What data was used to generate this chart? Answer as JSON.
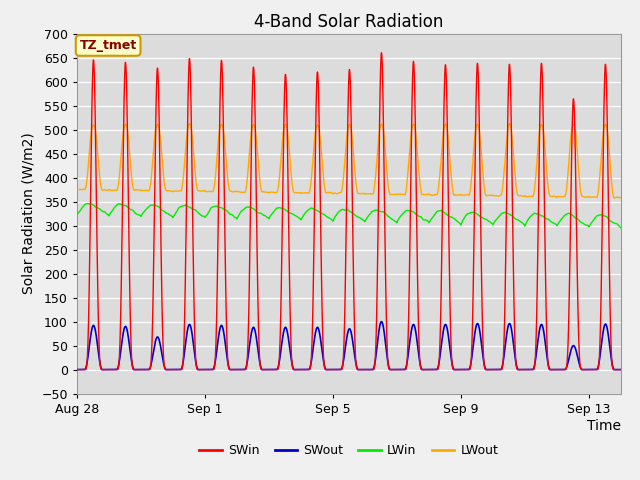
{
  "title": "4-Band Solar Radiation",
  "xlabel": "Time",
  "ylabel": "Solar Radiation (W/m2)",
  "ylim": [
    -50,
    700
  ],
  "xlim_days": 17.0,
  "fig_bg_color": "#f0f0f0",
  "plot_bg_color": "#dcdcdc",
  "grid_color": "white",
  "annotation_text": "TZ_tmet",
  "annotation_bg": "#ffffcc",
  "annotation_border": "#cc9900",
  "colors": {
    "SWin": "#ff0000",
    "SWout": "#0000cc",
    "LWin": "#00ee00",
    "LWout": "#ffaa00"
  },
  "legend_labels": [
    "SWin",
    "SWout",
    "LWin",
    "LWout"
  ],
  "xtick_labels": [
    "Aug 28",
    "Sep 1",
    "Sep 5",
    "Sep 9",
    "Sep 13"
  ],
  "xtick_positions": [
    0,
    4,
    8,
    12,
    16
  ],
  "title_fontsize": 12,
  "axis_label_fontsize": 10,
  "tick_fontsize": 9
}
